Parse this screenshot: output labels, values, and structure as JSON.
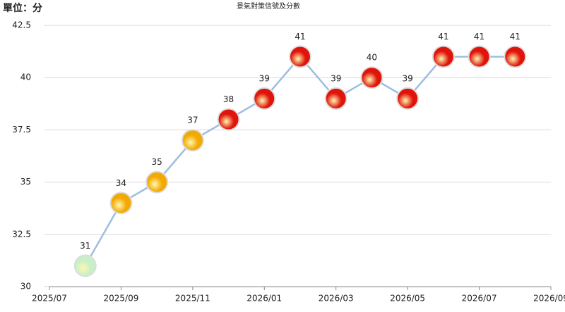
{
  "chart_data": {
    "type": "line",
    "title": "景氣對策信號及分數",
    "unit_label": "單位：分",
    "x": [
      "2025/08",
      "2025/09",
      "2025/10",
      "2025/11",
      "2025/12",
      "2026/01",
      "2026/02",
      "2026/03",
      "2026/04",
      "2026/05",
      "2026/06",
      "2026/07",
      "2026/08"
    ],
    "xlim": [
      "2025/07",
      "2026/09"
    ],
    "xticks": [
      "2025/07",
      "2025/09",
      "2025/11",
      "2026/01",
      "2026/03",
      "2026/05",
      "2026/07",
      "2026/09"
    ],
    "ylim": [
      30,
      42.5
    ],
    "yticks": [
      30,
      32.5,
      35,
      37.5,
      40,
      42.5
    ],
    "grid": true,
    "line_color": "#9dbde0",
    "series": [
      {
        "name": "分數",
        "values": [
          31,
          34,
          35,
          37,
          38,
          39,
          41,
          39,
          40,
          39,
          41,
          41,
          41
        ],
        "colors": [
          "#c8f0c8",
          "#f2a900",
          "#f2a900",
          "#f2a900",
          "#e0140a",
          "#e0140a",
          "#e0140a",
          "#e0140a",
          "#e0140a",
          "#e0140a",
          "#e0140a",
          "#e0140a",
          "#e0140a"
        ]
      }
    ]
  }
}
